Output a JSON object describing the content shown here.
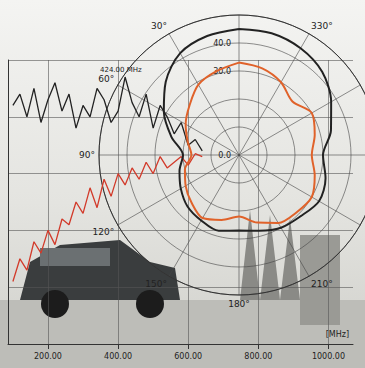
{
  "chart_data": [
    {
      "type": "line",
      "annotation": "424.00 MHz",
      "x_label": "[MHz]",
      "x": [
        100,
        120,
        140,
        160,
        180,
        200,
        220,
        240,
        260,
        280,
        300,
        320,
        340,
        360,
        380,
        400,
        420,
        440,
        460,
        480,
        500,
        520,
        540,
        560,
        580,
        600,
        620,
        640
      ],
      "series": [
        {
          "color": "#222222",
          "values": [
            84,
            88,
            80,
            90,
            78,
            86,
            92,
            82,
            88,
            76,
            84,
            80,
            90,
            86,
            78,
            82,
            94,
            85,
            80,
            88,
            76,
            84,
            80,
            74,
            78,
            70,
            72,
            68
          ]
        },
        {
          "color": "#d23a2a",
          "values": [
            22,
            30,
            26,
            36,
            32,
            40,
            35,
            44,
            42,
            50,
            46,
            55,
            48,
            58,
            52,
            60,
            56,
            62,
            58,
            64,
            60,
            66,
            62,
            64,
            66,
            63,
            67,
            66
          ]
        }
      ],
      "xlim": [
        86,
        1070
      ],
      "xticks": [
        {
          "value": 200,
          "label": "200.00"
        },
        {
          "value": 400,
          "label": "400.00"
        },
        {
          "value": 600,
          "label": "600.00"
        },
        {
          "value": 800,
          "label": "800.00"
        },
        {
          "value": 1000,
          "label": "1000.00"
        }
      ],
      "ylim": [
        0,
        100
      ],
      "yticks": [
        0,
        20,
        40,
        60,
        80,
        100
      ],
      "tick_labels": "x",
      "grid": true
    },
    {
      "type": "polar",
      "angles": [
        0,
        15,
        30,
        45,
        60,
        75,
        90,
        105,
        120,
        135,
        150,
        165,
        180,
        195,
        210,
        225,
        240,
        255,
        270,
        285,
        300,
        315,
        330,
        345
      ],
      "series": [
        {
          "color": "#222222",
          "values": [
            45,
            44,
            42,
            37,
            31,
            25,
            20,
            22,
            24,
            26,
            27,
            28,
            27,
            28,
            30,
            31,
            33,
            32,
            30,
            34,
            38,
            42,
            44,
            45
          ]
        },
        {
          "color": "#e0622a",
          "values": [
            33,
            31,
            29,
            25,
            22,
            19,
            17,
            20,
            22,
            24,
            26,
            24,
            22,
            25,
            28,
            29,
            30,
            28,
            26,
            28,
            30,
            27,
            30,
            32
          ]
        }
      ],
      "angle_ticks": [
        {
          "value": 30,
          "label": "30°"
        },
        {
          "value": 60,
          "label": "60°"
        },
        {
          "value": 90,
          "label": "90°"
        },
        {
          "value": 120,
          "label": "120°"
        },
        {
          "value": 150,
          "label": "150°"
        },
        {
          "value": 180,
          "label": "180°"
        },
        {
          "value": 210,
          "label": "210°"
        },
        {
          "value": 330,
          "label": "330°"
        }
      ],
      "rlim": [
        0,
        50
      ],
      "rticks": [
        {
          "value": 0,
          "label": "0.0"
        },
        {
          "value": 30,
          "label": "30.0"
        },
        {
          "value": 40,
          "label": "40.0"
        }
      ],
      "grid": true
    }
  ]
}
